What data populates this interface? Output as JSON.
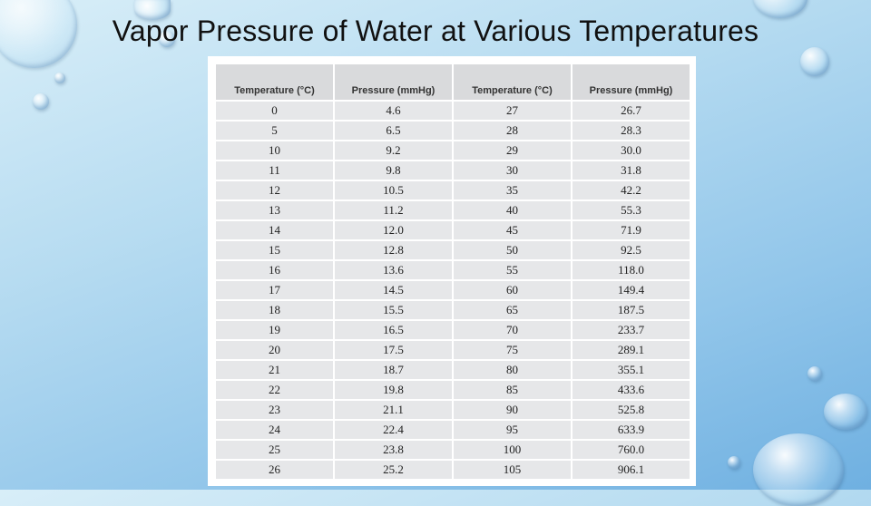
{
  "slide": {
    "title": "Vapor Pressure of Water at Various Temperatures"
  },
  "table": {
    "headers": [
      "Temperature (°C)",
      "Pressure (mmHg)",
      "Temperature (°C)",
      "Pressure (mmHg)"
    ],
    "rows": [
      [
        "0",
        "4.6",
        "27",
        "26.7"
      ],
      [
        "5",
        "6.5",
        "28",
        "28.3"
      ],
      [
        "10",
        "9.2",
        "29",
        "30.0"
      ],
      [
        "11",
        "9.8",
        "30",
        "31.8"
      ],
      [
        "12",
        "10.5",
        "35",
        "42.2"
      ],
      [
        "13",
        "11.2",
        "40",
        "55.3"
      ],
      [
        "14",
        "12.0",
        "45",
        "71.9"
      ],
      [
        "15",
        "12.8",
        "50",
        "92.5"
      ],
      [
        "16",
        "13.6",
        "55",
        "118.0"
      ],
      [
        "17",
        "14.5",
        "60",
        "149.4"
      ],
      [
        "18",
        "15.5",
        "65",
        "187.5"
      ],
      [
        "19",
        "16.5",
        "70",
        "233.7"
      ],
      [
        "20",
        "17.5",
        "75",
        "289.1"
      ],
      [
        "21",
        "18.7",
        "80",
        "355.1"
      ],
      [
        "22",
        "19.8",
        "85",
        "433.6"
      ],
      [
        "23",
        "21.1",
        "90",
        "525.8"
      ],
      [
        "24",
        "22.4",
        "95",
        "633.9"
      ],
      [
        "25",
        "23.8",
        "100",
        "760.0"
      ],
      [
        "26",
        "25.2",
        "105",
        "906.1"
      ]
    ]
  },
  "colors": {
    "background_top": "#d8eef8",
    "background_bottom": "#6fb0e1",
    "header_cell": "#d9dadc",
    "body_cell": "#e6e7e9"
  },
  "decorations": {
    "icon": "water-droplet-icon"
  }
}
